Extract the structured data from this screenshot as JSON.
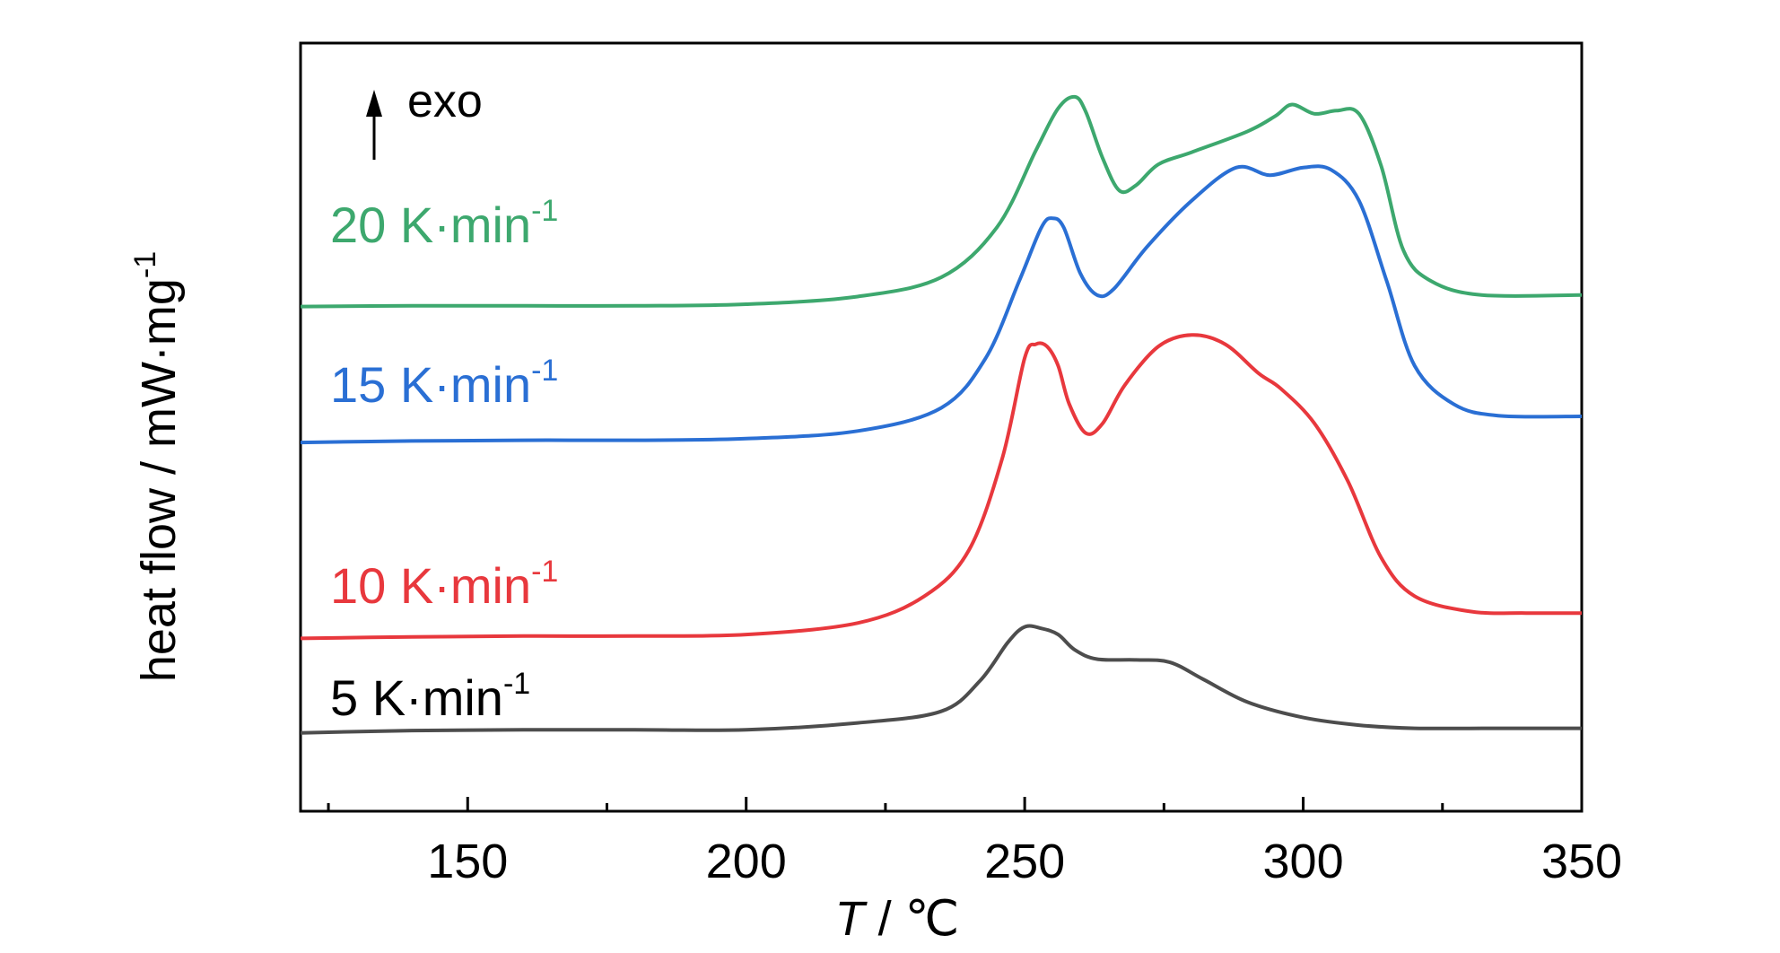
{
  "chart_data": {
    "type": "line",
    "xlabel": {
      "symbol": "T",
      "unit": " / ℃"
    },
    "ylabel": {
      "text": "heat flow / mW·mg",
      "sup": "-1"
    },
    "xlim": [
      120,
      350
    ],
    "ylim": [
      0,
      10
    ],
    "x_ticks": [
      150,
      200,
      250,
      300,
      350
    ],
    "x_minor_ticks": [
      125,
      175,
      225,
      275,
      325
    ],
    "grid": false,
    "annotation": {
      "text": "exo",
      "arrow": "up"
    },
    "series": [
      {
        "name": "5 K·min",
        "sup": "-1",
        "color": "#4d4d4d",
        "points": [
          [
            120,
            1.02
          ],
          [
            140,
            1.05
          ],
          [
            160,
            1.06
          ],
          [
            180,
            1.06
          ],
          [
            200,
            1.06
          ],
          [
            220,
            1.15
          ],
          [
            235,
            1.3
          ],
          [
            242,
            1.7
          ],
          [
            247,
            2.2
          ],
          [
            250,
            2.4
          ],
          [
            253,
            2.38
          ],
          [
            256,
            2.3
          ],
          [
            259,
            2.1
          ],
          [
            263,
            1.98
          ],
          [
            270,
            1.97
          ],
          [
            276,
            1.94
          ],
          [
            282,
            1.72
          ],
          [
            290,
            1.42
          ],
          [
            300,
            1.22
          ],
          [
            310,
            1.12
          ],
          [
            320,
            1.08
          ],
          [
            335,
            1.08
          ],
          [
            350,
            1.08
          ]
        ]
      },
      {
        "name": "10 K·min",
        "sup": "-1",
        "color": "#e8383d",
        "points": [
          [
            120,
            2.25
          ],
          [
            140,
            2.27
          ],
          [
            160,
            2.28
          ],
          [
            180,
            2.28
          ],
          [
            200,
            2.3
          ],
          [
            220,
            2.45
          ],
          [
            232,
            2.8
          ],
          [
            240,
            3.4
          ],
          [
            246,
            4.6
          ],
          [
            250,
            5.9
          ],
          [
            252,
            6.08
          ],
          [
            254,
            6.05
          ],
          [
            256,
            5.8
          ],
          [
            258,
            5.3
          ],
          [
            261,
            4.92
          ],
          [
            264,
            5.05
          ],
          [
            268,
            5.55
          ],
          [
            274,
            6.05
          ],
          [
            280,
            6.2
          ],
          [
            286,
            6.08
          ],
          [
            292,
            5.7
          ],
          [
            296,
            5.5
          ],
          [
            302,
            5.05
          ],
          [
            308,
            4.3
          ],
          [
            314,
            3.3
          ],
          [
            320,
            2.8
          ],
          [
            330,
            2.6
          ],
          [
            340,
            2.58
          ],
          [
            350,
            2.58
          ]
        ]
      },
      {
        "name": "15 K·min",
        "sup": "-1",
        "color": "#2a6fd4",
        "points": [
          [
            120,
            4.8
          ],
          [
            140,
            4.82
          ],
          [
            160,
            4.83
          ],
          [
            180,
            4.83
          ],
          [
            200,
            4.85
          ],
          [
            220,
            4.95
          ],
          [
            235,
            5.25
          ],
          [
            243,
            5.9
          ],
          [
            249,
            6.9
          ],
          [
            253,
            7.6
          ],
          [
            255,
            7.72
          ],
          [
            257,
            7.6
          ],
          [
            260,
            7.0
          ],
          [
            263,
            6.72
          ],
          [
            266,
            6.8
          ],
          [
            272,
            7.35
          ],
          [
            280,
            7.95
          ],
          [
            288,
            8.38
          ],
          [
            294,
            8.28
          ],
          [
            300,
            8.38
          ],
          [
            305,
            8.35
          ],
          [
            310,
            7.95
          ],
          [
            315,
            6.9
          ],
          [
            320,
            5.8
          ],
          [
            327,
            5.3
          ],
          [
            335,
            5.15
          ],
          [
            350,
            5.14
          ]
        ]
      },
      {
        "name": "20 K·min",
        "sup": "-1",
        "color": "#3da86e",
        "points": [
          [
            120,
            6.57
          ],
          [
            140,
            6.58
          ],
          [
            160,
            6.58
          ],
          [
            180,
            6.58
          ],
          [
            200,
            6.6
          ],
          [
            220,
            6.7
          ],
          [
            235,
            6.95
          ],
          [
            245,
            7.6
          ],
          [
            252,
            8.6
          ],
          [
            256,
            9.15
          ],
          [
            259,
            9.3
          ],
          [
            261,
            9.1
          ],
          [
            264,
            8.5
          ],
          [
            267,
            8.08
          ],
          [
            270,
            8.15
          ],
          [
            274,
            8.42
          ],
          [
            280,
            8.58
          ],
          [
            290,
            8.85
          ],
          [
            295,
            9.05
          ],
          [
            298,
            9.2
          ],
          [
            302,
            9.08
          ],
          [
            306,
            9.12
          ],
          [
            310,
            9.08
          ],
          [
            314,
            8.4
          ],
          [
            318,
            7.3
          ],
          [
            323,
            6.9
          ],
          [
            332,
            6.72
          ],
          [
            350,
            6.72
          ]
        ]
      }
    ]
  }
}
